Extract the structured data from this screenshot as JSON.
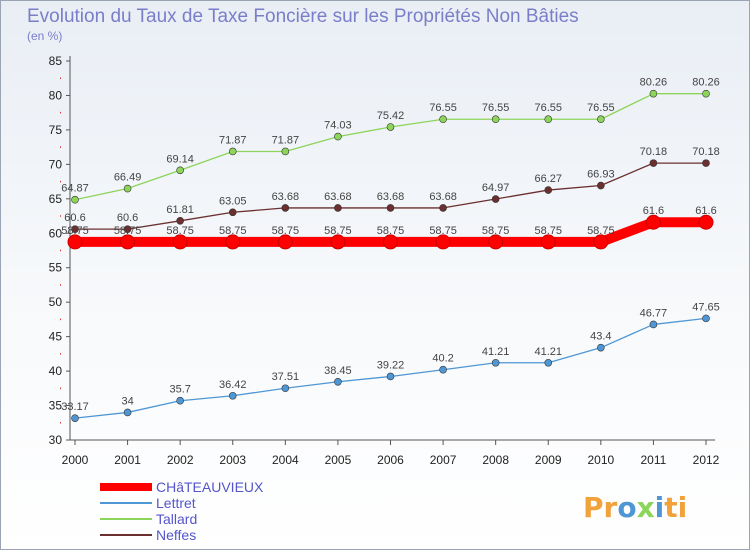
{
  "chart_data": {
    "type": "line",
    "title": "Evolution du Taux de Taxe Foncière sur les Propriétés Non Bâties",
    "ylabel_unit": "(en %)",
    "x": [
      "2000",
      "2001",
      "2002",
      "2003",
      "2004",
      "2005",
      "2006",
      "2007",
      "2008",
      "2009",
      "2010",
      "2011",
      "2012"
    ],
    "ylim": [
      30,
      85
    ],
    "yticks": [
      30,
      35,
      40,
      45,
      50,
      55,
      60,
      65,
      70,
      75,
      80,
      85
    ],
    "grid": false,
    "legend_position": "bottom-left",
    "series": [
      {
        "name": "CHâTEAUVIEUX",
        "color": "#ff0000",
        "values": [
          58.75,
          58.75,
          58.75,
          58.75,
          58.75,
          58.75,
          58.75,
          58.75,
          58.75,
          58.75,
          58.75,
          61.6,
          61.6
        ],
        "labels": [
          "58.75",
          "58.75",
          "58.75",
          "58.75",
          "58.75",
          "58.75",
          "58.75",
          "58.75",
          "58.75",
          "58.75",
          "58.75",
          "61.6",
          "61.6"
        ]
      },
      {
        "name": "Lettret",
        "color": "#4f97d4",
        "values": [
          33.17,
          34,
          35.7,
          36.42,
          37.51,
          38.45,
          39.22,
          40.2,
          41.21,
          41.21,
          43.4,
          46.77,
          47.65
        ],
        "labels": [
          "33.17",
          "34",
          "35.7",
          "36.42",
          "37.51",
          "38.45",
          "39.22",
          "40.2",
          "41.21",
          "41.21",
          "43.4",
          "46.77",
          "47.65"
        ]
      },
      {
        "name": "Tallard",
        "color": "#8dd45a",
        "values": [
          64.87,
          66.49,
          69.14,
          71.87,
          71.87,
          74.03,
          75.42,
          76.55,
          76.55,
          76.55,
          76.55,
          80.26,
          80.26
        ],
        "labels": [
          "64.87",
          "66.49",
          "69.14",
          "71.87",
          "71.87",
          "74.03",
          "75.42",
          "76.55",
          "76.55",
          "76.55",
          "76.55",
          "80.26",
          "80.26"
        ]
      },
      {
        "name": "Neffes",
        "color": "#6b2f2f",
        "values": [
          60.6,
          60.6,
          61.81,
          63.05,
          63.68,
          63.68,
          63.68,
          63.68,
          64.97,
          66.27,
          66.93,
          70.18,
          70.18
        ],
        "labels": [
          "60.6",
          "60.6",
          "61.81",
          "63.05",
          "63.68",
          "63.68",
          "63.68",
          "63.68",
          "64.97",
          "66.27",
          "66.93",
          "70.18",
          "70.18"
        ]
      }
    ]
  },
  "logo": {
    "text_a": "Pr",
    "text_b": "o",
    "text_c": "x",
    "text_d": "i",
    "text_e": "ti"
  }
}
